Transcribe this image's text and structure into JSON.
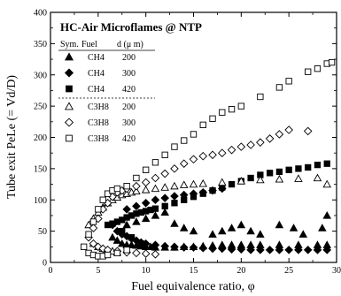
{
  "chart_data": {
    "type": "scatter",
    "title": "HC-Air Microflames @ NTP",
    "xlabel": "Fuel equivalence ratio,  φ",
    "ylabel": "Tube exit PeLe (= Vd/D)",
    "xlim": [
      0,
      30
    ],
    "ylim": [
      0,
      400
    ],
    "xticks": [
      "0",
      "5",
      "10",
      "15",
      "20",
      "25",
      "30"
    ],
    "yticks": [
      "0",
      "50",
      "100",
      "150",
      "200",
      "250",
      "300",
      "350",
      "400"
    ],
    "grid": false,
    "legend_position": "top-left",
    "legend_headers": [
      "Sym.",
      "Fuel",
      "d (μ m)"
    ],
    "series": [
      {
        "name": "CH4 200",
        "fuel": "CH4",
        "d": "200",
        "marker": "triangle",
        "filled": true,
        "x": [
          6.5,
          7.0,
          7.5,
          8.0,
          8.5,
          9.0,
          9.5,
          10.0,
          10.5,
          11.0,
          12.0,
          13.0,
          14.0,
          15.0,
          16.0,
          17.0,
          18.0,
          19.0,
          20.0,
          21.0,
          22.0,
          24.0,
          26.0,
          28.0,
          29.0,
          8.0,
          9.0,
          10.0,
          11.0,
          12.0,
          13.0,
          14.0,
          15.0,
          17.0,
          18.0,
          19.0,
          20.0,
          21.0,
          22.0,
          24.0,
          25.5,
          26.5,
          28.5,
          29.0
        ],
        "y": [
          40,
          35,
          30,
          28,
          28,
          27,
          26,
          25,
          25,
          24,
          24,
          24,
          25,
          25,
          26,
          27,
          28,
          28,
          28,
          28,
          28,
          28,
          28,
          28,
          28,
          60,
          65,
          70,
          75,
          80,
          62,
          55,
          50,
          45,
          50,
          55,
          60,
          50,
          45,
          60,
          55,
          45,
          55,
          75
        ]
      },
      {
        "name": "CH4 300",
        "fuel": "CH4",
        "d": "300",
        "marker": "diamond",
        "filled": true,
        "x": [
          6.5,
          7.0,
          7.5,
          8.0,
          8.5,
          9.0,
          9.5,
          10.0,
          11.0,
          12.0,
          13.0,
          14.0,
          15.0,
          16.0,
          17.0,
          18.0,
          19.0,
          20.0,
          21.0,
          22.0,
          23.0,
          24.0,
          25.0,
          26.0,
          27.0,
          28.0,
          29.0,
          8.0,
          9.0,
          10.0,
          11.0,
          12.0,
          13.0,
          14.0,
          15.0,
          16.0,
          17.0,
          18.0
        ],
        "y": [
          60,
          50,
          45,
          42,
          38,
          35,
          32,
          30,
          28,
          26,
          25,
          24,
          24,
          23,
          22,
          22,
          21,
          21,
          20,
          20,
          20,
          20,
          20,
          20,
          20,
          20,
          20,
          85,
          90,
          95,
          100,
          103,
          106,
          108,
          110,
          112,
          115,
          118
        ]
      },
      {
        "name": "CH4 420",
        "fuel": "CH4",
        "d": "420",
        "marker": "square",
        "filled": true,
        "x": [
          6.0,
          6.5,
          7.0,
          7.5,
          8.0,
          8.5,
          9.0,
          9.5,
          10.0,
          10.5,
          11.0,
          12.0,
          13.0,
          14.0,
          15.0,
          16.0,
          17.0,
          18.0,
          19.0,
          20.0,
          21.0,
          22.0,
          23.0,
          24.0,
          25.0,
          26.0,
          27.0,
          28.0,
          29.0,
          7.5,
          8.5,
          9.5
        ],
        "y": [
          60,
          62,
          65,
          68,
          72,
          75,
          78,
          80,
          82,
          84,
          86,
          90,
          95,
          100,
          105,
          110,
          115,
          120,
          125,
          130,
          135,
          140,
          143,
          145,
          148,
          150,
          152,
          156,
          158,
          50,
          40,
          30
        ]
      },
      {
        "name": "C3H8 200",
        "fuel": "C3H8",
        "d": "200",
        "marker": "triangle",
        "filled": false,
        "x": [
          4.0,
          4.5,
          5.0,
          5.5,
          6.0,
          6.5,
          7.0,
          7.5,
          8.0,
          8.5,
          9.0,
          10.0,
          11.0,
          12.0,
          13.0,
          14.0,
          15.0,
          16.0,
          18.0,
          20.0,
          22.0,
          24.0,
          26.0,
          28.0,
          29.0,
          4.5,
          5.0,
          5.5,
          6.0,
          6.5,
          7.0
        ],
        "y": [
          60,
          70,
          80,
          88,
          95,
          100,
          104,
          108,
          110,
          112,
          114,
          116,
          118,
          120,
          122,
          124,
          125,
          126,
          128,
          130,
          132,
          133,
          134,
          135,
          125,
          30,
          25,
          22,
          20,
          18,
          16
        ]
      },
      {
        "name": "C3H8 300",
        "fuel": "C3H8",
        "d": "300",
        "marker": "diamond",
        "filled": false,
        "x": [
          4.0,
          4.5,
          5.0,
          5.5,
          6.0,
          6.5,
          7.0,
          7.5,
          8.0,
          9.0,
          10.0,
          11.0,
          12.0,
          13.0,
          14.0,
          15.0,
          16.0,
          17.0,
          18.0,
          19.0,
          20.0,
          21.0,
          22.0,
          23.0,
          24.0,
          25.0,
          27.0,
          4.5,
          5.0,
          5.5,
          6.0,
          7.0,
          8.0,
          9.0,
          10.0,
          11.0
        ],
        "y": [
          40,
          55,
          70,
          85,
          95,
          105,
          112,
          115,
          118,
          122,
          128,
          135,
          142,
          150,
          158,
          165,
          170,
          172,
          175,
          180,
          185,
          188,
          192,
          198,
          205,
          212,
          210,
          30,
          25,
          22,
          20,
          18,
          16,
          15,
          14,
          13
        ]
      },
      {
        "name": "C3H8 420",
        "fuel": "C3H8",
        "d": "420",
        "marker": "square",
        "filled": false,
        "x": [
          3.5,
          4.0,
          4.5,
          5.0,
          5.5,
          6.0,
          6.5,
          7.0,
          8.0,
          9.0,
          10.0,
          11.0,
          12.0,
          13.0,
          14.0,
          15.0,
          16.0,
          17.0,
          18.0,
          19.0,
          20.0,
          22.0,
          24.0,
          25.0,
          27.0,
          28.0,
          29.0,
          29.5,
          4.0,
          4.5,
          5.0,
          5.5,
          6.0,
          7.0,
          8.0
        ],
        "y": [
          25,
          45,
          65,
          85,
          100,
          110,
          115,
          118,
          122,
          135,
          148,
          160,
          172,
          185,
          195,
          205,
          220,
          230,
          240,
          245,
          250,
          265,
          280,
          290,
          305,
          310,
          318,
          320,
          15,
          12,
          10,
          10,
          12,
          15,
          20
        ]
      }
    ]
  }
}
